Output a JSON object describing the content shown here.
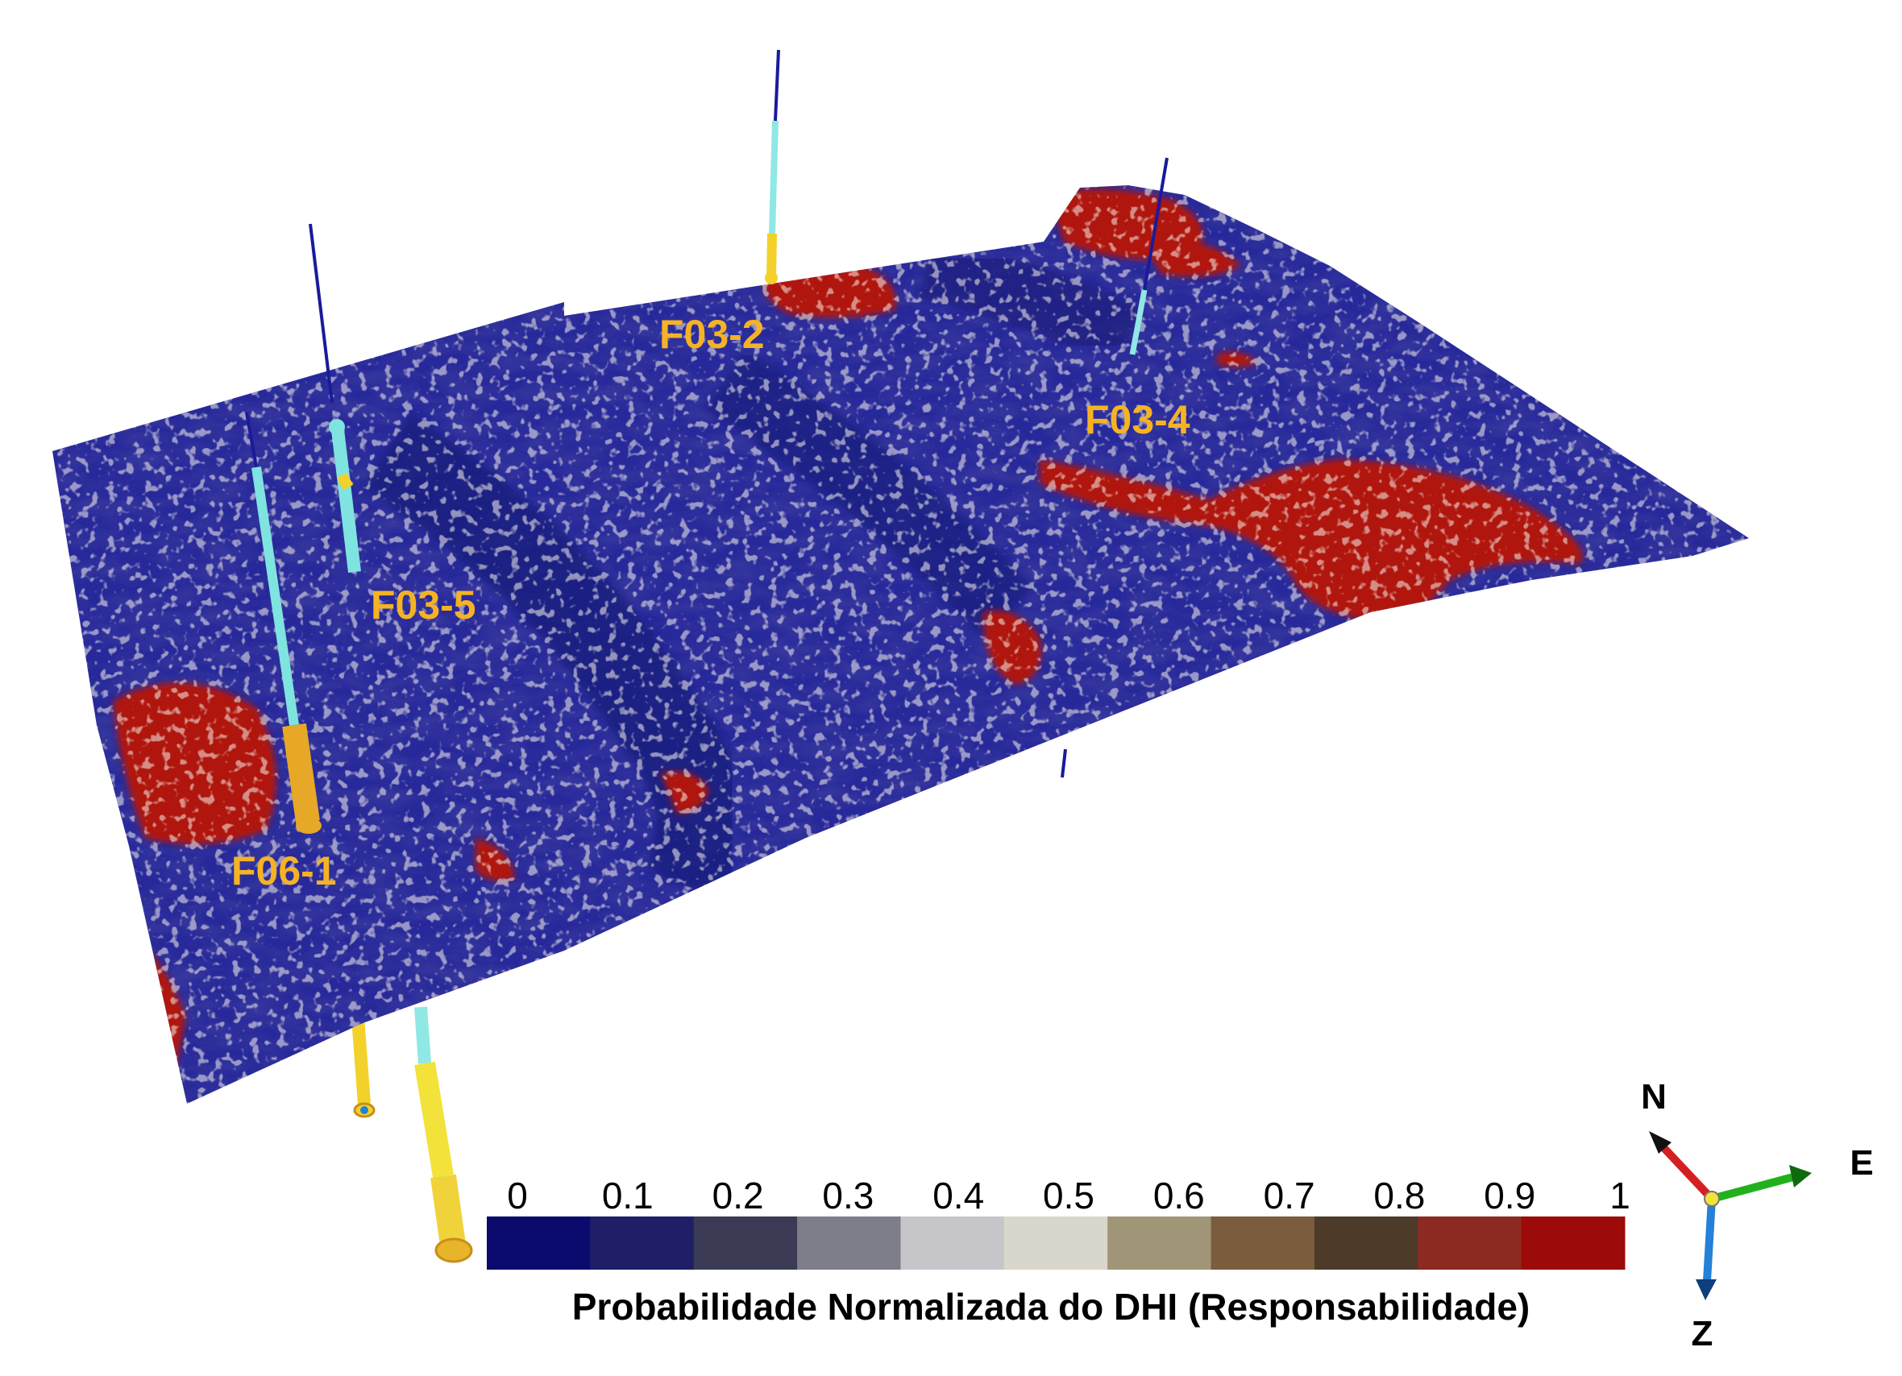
{
  "wells": [
    {
      "name": "F03-2",
      "top_color": "#1a1a9a",
      "body_color": "#8fe8e4",
      "base_color": "#f2d12a"
    },
    {
      "name": "F03-4",
      "top_color": "#1a1a9a",
      "body_color": "#8fe8e4",
      "base_color": "#8fe8e4"
    },
    {
      "name": "F03-5",
      "top_color": "#1a1a9a",
      "body_color": "#7fe3e0",
      "base_color": "#f2d12a"
    },
    {
      "name": "F06-1",
      "top_color": "#1a1a9a",
      "body_color": "#7fe3e0",
      "base_color": "#e6a826"
    }
  ],
  "colorbar": {
    "title": "Probabilidade Normalizada do DHI (Responsabilidade)",
    "ticks": [
      "0",
      "0.1",
      "0.2",
      "0.3",
      "0.4",
      "0.5",
      "0.6",
      "0.7",
      "0.8",
      "0.9",
      "1"
    ],
    "colors": [
      "#0b0b6e",
      "#1e1f66",
      "#3b3b55",
      "#7e7d8a",
      "#c6c5c9",
      "#d9d6cc",
      "#a09677",
      "#7b5c3c",
      "#4d3a28",
      "#8c2a22",
      "#9c0a0a"
    ]
  },
  "compass": {
    "north": "N",
    "east": "E",
    "down": "Z",
    "north_color": "#d42020",
    "east_color": "#22b11d",
    "down_color": "#2480d8",
    "origin_color": "#f2e23a"
  },
  "surface": {
    "base_color": "#27299a",
    "high_color": "#b0160e",
    "speckle_color": "#e8dfd2"
  }
}
